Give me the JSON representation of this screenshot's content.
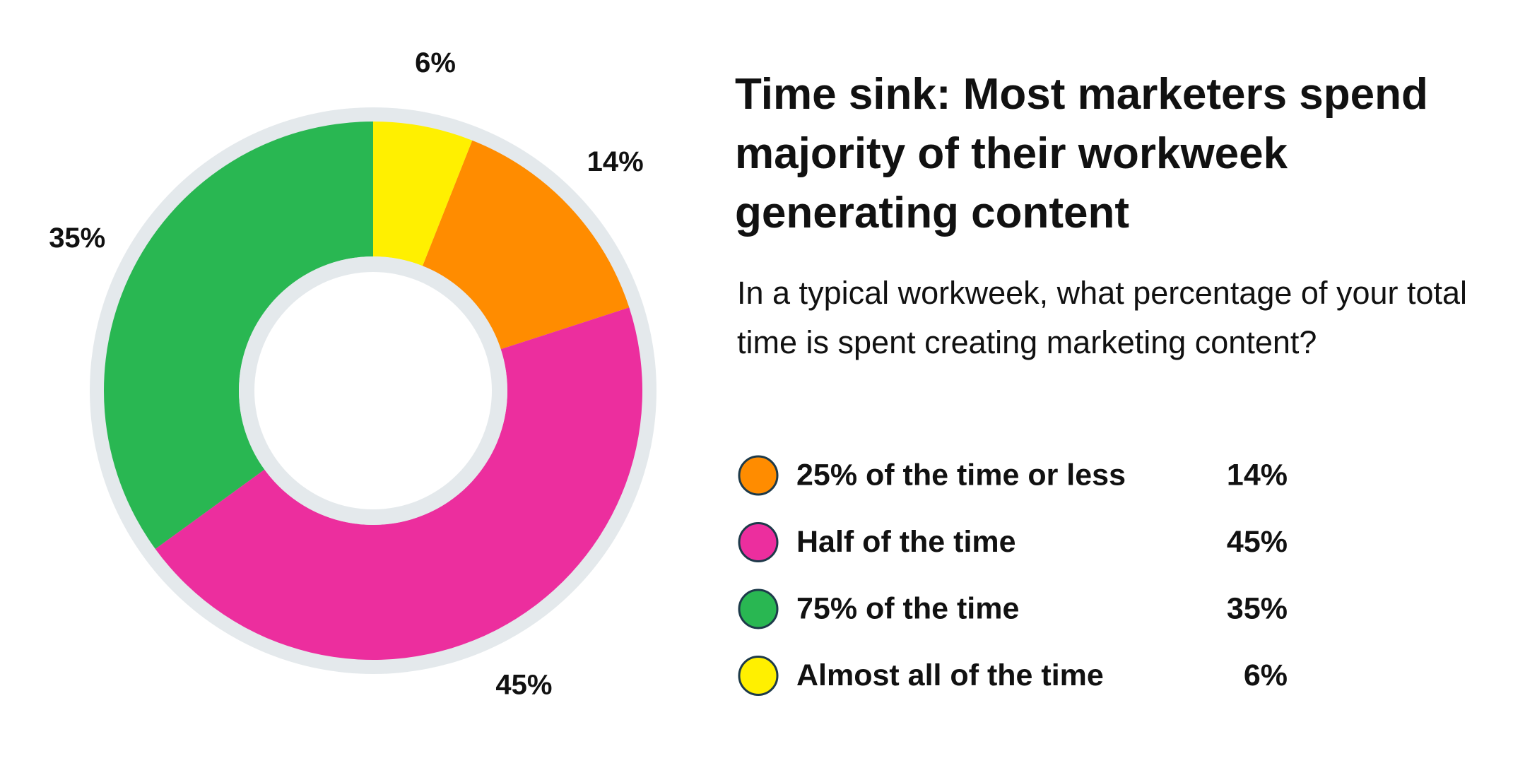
{
  "chart_data": {
    "type": "donut",
    "title": "Time sink: Most marketers spend majority of their workweek generating content",
    "subtitle": "In a typical workweek, what percentage of your total time is spent creating marketing content?",
    "categories": [
      "25% of the time or less",
      "Half of the time",
      "75% of the time",
      "Almost all of the time"
    ],
    "values": [
      14,
      45,
      35,
      6
    ],
    "value_labels": [
      "14%",
      "45%",
      "35%",
      "6%"
    ],
    "colors": [
      "#ff8c00",
      "#ec2e9e",
      "#29b752",
      "#fff000"
    ],
    "legend": "right"
  }
}
